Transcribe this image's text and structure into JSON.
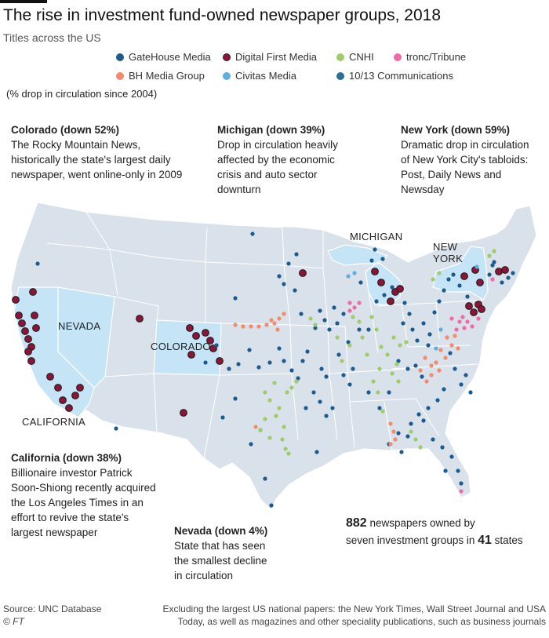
{
  "title": "The rise in investment fund-owned newspaper groups, 2018",
  "subtitle": "Titles across the US",
  "legend": [
    {
      "name": "GateHouse Media",
      "color": "#1d5a8e"
    },
    {
      "name": "Digital First Media",
      "color": "#8a1538"
    },
    {
      "name": "CNHI",
      "color": "#9fcc6b"
    },
    {
      "name": "tronc/Tribune",
      "color": "#f06aa8"
    },
    {
      "name": "BH Media Group",
      "color": "#f28a6c"
    },
    {
      "name": "Civitas Media",
      "color": "#5eaee0"
    },
    {
      "name": "10/13 Communications",
      "color": "#2a6f97"
    }
  ],
  "note": "(% drop in circulation since 2004)",
  "annotations": {
    "colorado": {
      "heading": "Colorado (down 52%)",
      "lines": [
        "The Rocky Mountain News,",
        "historically the state's largest daily",
        "newspaper, went online-only in 2009"
      ]
    },
    "michigan": {
      "heading": "Michigan (down 39%)",
      "lines": [
        "Drop in circulation heavily",
        "affected by the economic",
        "crisis and auto sector",
        "downturn"
      ]
    },
    "newyork": {
      "heading": "New York (down 59%)",
      "lines": [
        "Dramatic drop in circulation",
        "of New York City's tabloids:",
        "Post, Daily News and",
        "Newsday"
      ]
    },
    "california": {
      "heading": "California (down 38%)",
      "lines": [
        "Billionaire investor Patrick",
        "Soon-Shiong recently acquired",
        "the Los Angeles Times in an",
        "effort to revive the state's",
        "largest newspaper"
      ]
    },
    "nevada": {
      "heading": "Nevada  (down 4%)",
      "lines": [
        "State that has seen",
        "the smallest decline",
        "in circulation"
      ]
    }
  },
  "state_labels": {
    "michigan": "MICHIGAN",
    "newyork_1": "NEW",
    "newyork_2": "YORK",
    "nevada": "NEVADA",
    "colorado": "COLORADO",
    "california": "CALIFORNIA"
  },
  "summary": {
    "count_newspapers": "882",
    "text_1": " newspapers owned by",
    "text_2": "seven investment groups in ",
    "count_states": "41",
    "text_3": " states"
  },
  "source": {
    "line1": "Source: UNC Database",
    "line2": "© FT"
  },
  "footnote": {
    "line1": "Excluding the largest US national papers: the New York Times, Wall Street Journal and USA",
    "line2": "Today, as well as magazines and other speciality publications, such as business journals"
  },
  "colors": {
    "land": "#d9e1ea",
    "highlight": "#c5e4f5",
    "border": "#ffffff"
  }
}
